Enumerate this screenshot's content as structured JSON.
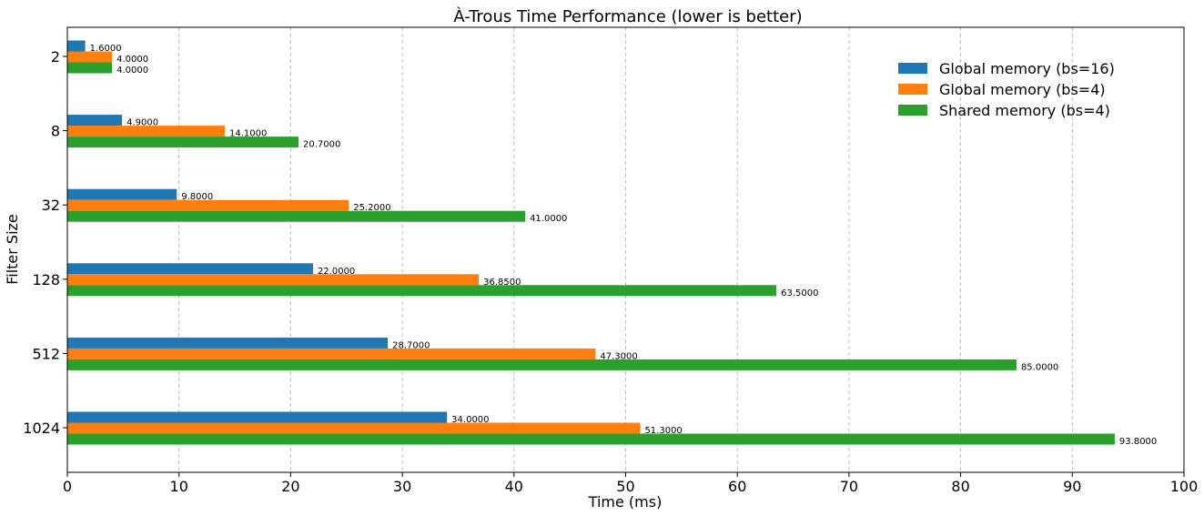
{
  "chart_data": {
    "type": "bar",
    "orientation": "horizontal",
    "title": "À-Trous Time Performance (lower is better)",
    "xlabel": "Time (ms)",
    "ylabel": "Filter Size",
    "categories": [
      "2",
      "8",
      "32",
      "128",
      "512",
      "1024"
    ],
    "xlim": [
      0,
      100
    ],
    "xticks": [
      0,
      10,
      20,
      30,
      40,
      50,
      60,
      70,
      80,
      90,
      100
    ],
    "grid": "x, dashed",
    "legend_position": "top-right",
    "series": [
      {
        "name": "Global memory (bs=16)",
        "color": "#1f77b4",
        "values": [
          1.6,
          4.9,
          9.8,
          22.0,
          28.7,
          34.0
        ],
        "labels": [
          "1.6000",
          "4.9000",
          "9.8000",
          "22.0000",
          "28.7000",
          "34.0000"
        ]
      },
      {
        "name": "Global memory (bs=4)",
        "color": "#ff7f0e",
        "values": [
          4.0,
          14.1,
          25.2,
          36.85,
          47.3,
          51.3
        ],
        "labels": [
          "4.0000",
          "14.1000",
          "25.2000",
          "36.8500",
          "47.3000",
          "51.3000"
        ]
      },
      {
        "name": "Shared memory (bs=4)",
        "color": "#2ca02c",
        "values": [
          4.0,
          20.7,
          41.0,
          63.5,
          85.0,
          93.8
        ],
        "labels": [
          "4.0000",
          "20.7000",
          "41.0000",
          "63.5000",
          "85.0000",
          "93.8000"
        ]
      }
    ]
  }
}
